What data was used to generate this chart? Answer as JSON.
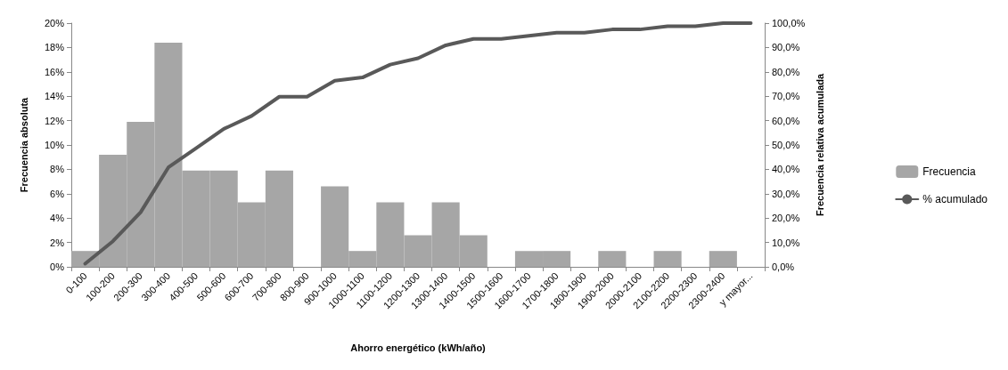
{
  "chart_data": {
    "type": "bar",
    "xlabel": "Ahorro energético (kWh/año)",
    "ylabel": "Frecuencia absoluta",
    "y2label": "Frecuencia relativa acumulada",
    "categories": [
      "0-100",
      "100-200",
      "200-300",
      "300-400",
      "400-500",
      "500-600",
      "600-700",
      "700-800",
      "800-900",
      "900-1000",
      "1000-1100",
      "1100-1200",
      "1200-1300",
      "1300-1400",
      "1400-1500",
      "1500-1600",
      "1600-1700",
      "1700-1800",
      "1800-1900",
      "1900-2000",
      "2000-2100",
      "2100-2200",
      "2200-2300",
      "2300-2400",
      "y mayor..."
    ],
    "series": [
      {
        "name": "Frecuencia",
        "color": "#a6a6a6",
        "values": [
          1.3,
          9.2,
          11.9,
          18.4,
          7.9,
          7.9,
          5.3,
          7.9,
          0,
          6.6,
          1.3,
          5.3,
          2.6,
          5.3,
          2.6,
          0,
          1.3,
          1.3,
          0,
          1.3,
          0,
          1.3,
          0,
          1.3,
          0
        ]
      },
      {
        "name": "% acumulado",
        "type": "line",
        "axis": "y2",
        "color": "#595959",
        "values": [
          1.3,
          10.5,
          22.4,
          40.8,
          48.7,
          56.6,
          61.9,
          69.8,
          69.8,
          76.4,
          77.7,
          83.0,
          85.6,
          90.9,
          93.5,
          93.5,
          94.8,
          96.1,
          96.1,
          97.4,
          97.4,
          98.7,
          98.7,
          100,
          100
        ]
      }
    ],
    "ylim": [
      0,
      20
    ],
    "yticks": [
      {
        "value": 0,
        "label": "0%"
      },
      {
        "value": 2,
        "label": "2%"
      },
      {
        "value": 4,
        "label": "4%"
      },
      {
        "value": 6,
        "label": "6%"
      },
      {
        "value": 8,
        "label": "8%"
      },
      {
        "value": 10,
        "label": "10%"
      },
      {
        "value": 12,
        "label": "12%"
      },
      {
        "value": 14,
        "label": "14%"
      },
      {
        "value": 16,
        "label": "16%"
      },
      {
        "value": 18,
        "label": "18%"
      },
      {
        "value": 20,
        "label": "20%"
      }
    ],
    "y2lim": [
      0,
      100
    ],
    "y2ticks": [
      {
        "value": 0,
        "label": "0,0%"
      },
      {
        "value": 10,
        "label": "10,0%"
      },
      {
        "value": 20,
        "label": "20,0%"
      },
      {
        "value": 30,
        "label": "30,0%"
      },
      {
        "value": 40,
        "label": "40,0%"
      },
      {
        "value": 50,
        "label": "50,0%"
      },
      {
        "value": 60,
        "label": "60,0%"
      },
      {
        "value": 70,
        "label": "70,0%"
      },
      {
        "value": 80,
        "label": "80,0%"
      },
      {
        "value": 90,
        "label": "90,0%"
      },
      {
        "value": 100,
        "label": "100,0%"
      }
    ],
    "grid": false,
    "legend": "right",
    "marker": "none",
    "line_style": "solid"
  }
}
